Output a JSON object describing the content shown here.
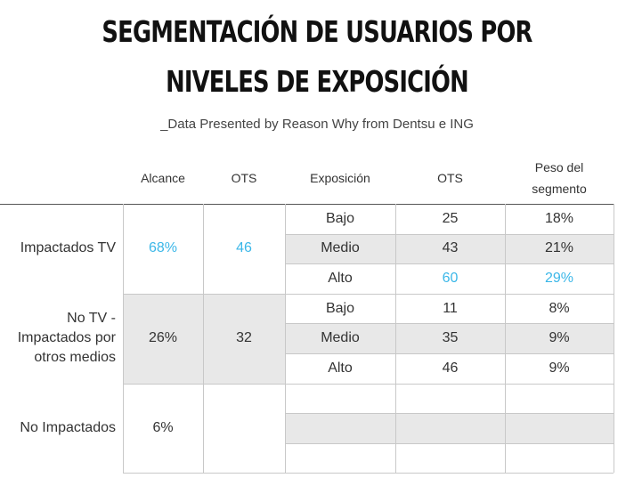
{
  "title_line1": "SEGMENTACIÓN DE USUARIOS POR",
  "title_line2": "NIVELES DE EXPOSICIÓN",
  "subtitle": "_Data Presented by Reason Why from Dentsu e ING",
  "headers": {
    "alcance": "Alcance",
    "ots1": "OTS",
    "exposicion": "Exposición",
    "ots2": "OTS",
    "peso_line1": "Peso del",
    "peso_line2": "segmento"
  },
  "groups": [
    {
      "label": "Impactados TV",
      "alcance": "68%",
      "ots": "46",
      "rows": [
        {
          "exposicion": "Bajo",
          "ots": "25",
          "peso": "18%"
        },
        {
          "exposicion": "Medio",
          "ots": "43",
          "peso": "21%"
        },
        {
          "exposicion": "Alto",
          "ots": "60",
          "peso": "29%"
        }
      ]
    },
    {
      "label": "No TV -\nImpactados por\notros medios",
      "alcance": "26%",
      "ots": "32",
      "rows": [
        {
          "exposicion": "Bajo",
          "ots": "11",
          "peso": "8%"
        },
        {
          "exposicion": "Medio",
          "ots": "35",
          "peso": "9%"
        },
        {
          "exposicion": "Alto",
          "ots": "46",
          "peso": "9%"
        }
      ]
    },
    {
      "label": "No Impactados",
      "alcance": "6%",
      "ots": "",
      "rows": [
        {
          "exposicion": "",
          "ots": "",
          "peso": ""
        },
        {
          "exposicion": "",
          "ots": "",
          "peso": ""
        },
        {
          "exposicion": "",
          "ots": "",
          "peso": ""
        }
      ]
    }
  ],
  "colors": {
    "highlight": "#3bb7e8",
    "shade": "#e8e8e8"
  }
}
